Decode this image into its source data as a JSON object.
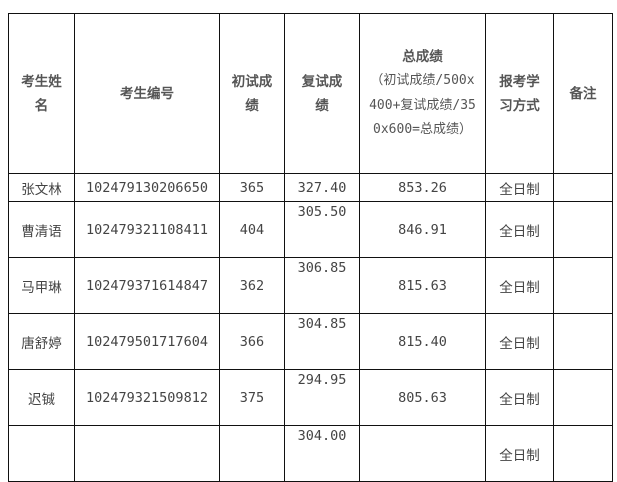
{
  "headers": {
    "name": "考生姓名",
    "id": "考生编号",
    "prelim": "初试成绩",
    "retest": "复试成绩",
    "total_title": "总成绩",
    "total_formula": "（初试成绩/500x400+复试成绩/350x600=总成绩）",
    "mode": "报考学习方式",
    "remark": "备注"
  },
  "rows": [
    {
      "name": "张文林",
      "id": "102479130206650",
      "prelim": "365",
      "retest": "327.40",
      "total": "853.26",
      "mode": "全日制",
      "remark": ""
    },
    {
      "name": "曹清语",
      "id": "102479321108411",
      "prelim": "404",
      "retest": "305.50",
      "total": "846.91",
      "mode": "全日制",
      "remark": ""
    },
    {
      "name": "马甲琳",
      "id": "102479371614847",
      "prelim": "362",
      "retest": "306.85",
      "total": "815.63",
      "mode": "全日制",
      "remark": ""
    },
    {
      "name": "唐舒婷",
      "id": "102479501717604",
      "prelim": "366",
      "retest": "304.85",
      "total": "815.40",
      "mode": "全日制",
      "remark": ""
    },
    {
      "name": "迟铖",
      "id": "102479321509812",
      "prelim": "375",
      "retest": "294.95",
      "total": "805.63",
      "mode": "全日制",
      "remark": ""
    },
    {
      "name": "",
      "id": "",
      "prelim": "",
      "retest": "304.00",
      "total": "",
      "mode": "全日制",
      "remark": ""
    }
  ]
}
